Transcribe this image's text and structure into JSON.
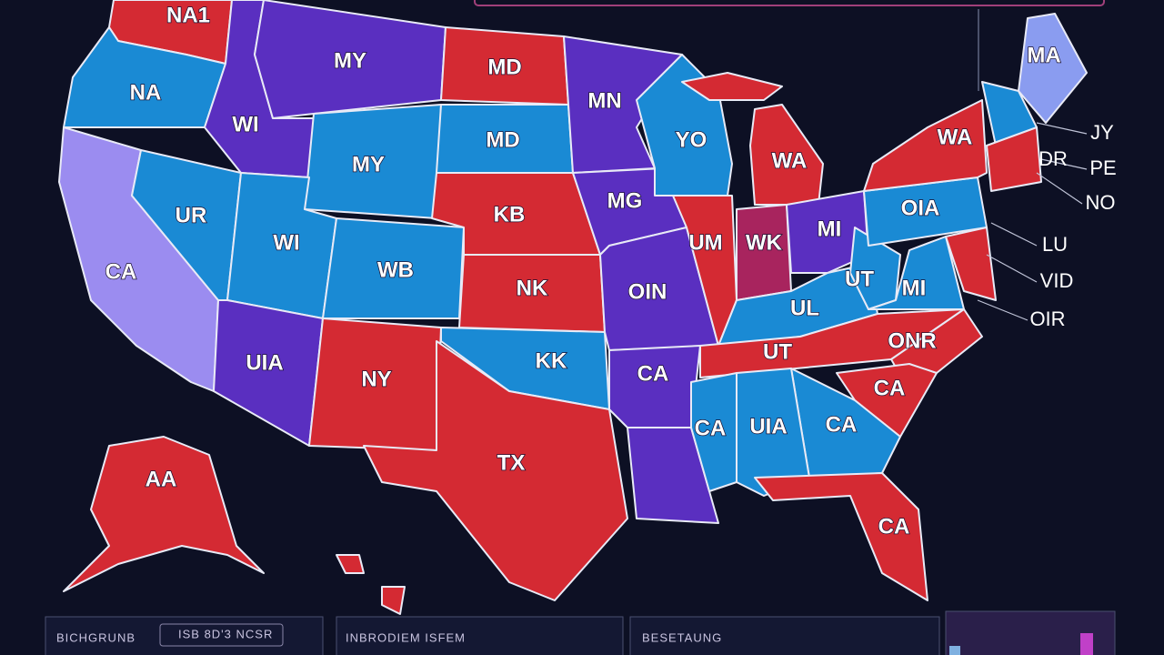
{
  "map": {
    "state_labels": [
      "NA1",
      "MY",
      "MD",
      "MN",
      "NA",
      "WI",
      "MD",
      "YO",
      "MY",
      "WA",
      "WA",
      "MA",
      "UR",
      "WI",
      "KB",
      "MG",
      "UM",
      "WK",
      "MI",
      "OIA",
      "CA",
      "WB",
      "NK",
      "OIN",
      "UL",
      "MI",
      "UT",
      "UIA",
      "NY",
      "KK",
      "CA",
      "UT",
      "ONR",
      "CA",
      "CA",
      "UIA",
      "CA",
      "TX",
      "CA",
      "AA"
    ]
  },
  "callouts": [
    "JY",
    "PE",
    "NO",
    "DR",
    "LU",
    "VID",
    "OIR"
  ],
  "panels": [
    {
      "title": "BICHGRUNB",
      "field": "ISB 8D'3 NCSR"
    },
    {
      "title": "INBRODIEM ISFEM"
    },
    {
      "title": "BESETAUNG"
    }
  ]
}
